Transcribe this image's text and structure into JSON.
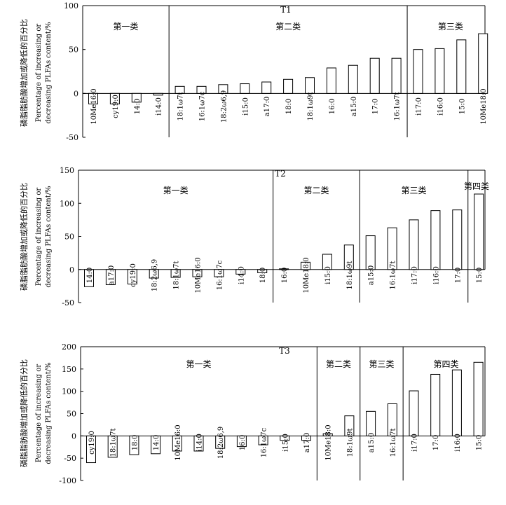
{
  "chart_data": [
    {
      "type": "bar",
      "title": "T1",
      "ylabel_cn": "磷脂脂肪酸增加或降低的百分比",
      "ylabel_en_line1": "Percentage of increasing or",
      "ylabel_en_line2": "decreasing PLFAs content/%",
      "ylim": [
        -50,
        100
      ],
      "yticks": [
        100,
        50,
        0,
        -50
      ],
      "categories": [
        "10Me16:0",
        "cy19:0",
        "14:0",
        "i14:0",
        "18:1ω7t",
        "16:1ω7c",
        "18:2ω6,9",
        "i15:0",
        "a17:0",
        "18:0",
        "18:1ω9t",
        "16:0",
        "a15:0",
        "17:0",
        "16:1ω7t",
        "i17:0",
        "i16:0",
        "15:0",
        "10Me18:0"
      ],
      "values": [
        -12,
        -12,
        -10,
        -2,
        8,
        8,
        10,
        11,
        13,
        16,
        18,
        29,
        32,
        40,
        40,
        50,
        51,
        61,
        68
      ],
      "groups": [
        {
          "label": "第一类",
          "start": 0,
          "end": 3
        },
        {
          "label": "第二类",
          "start": 4,
          "end": 14
        },
        {
          "label": "第三类",
          "start": 15,
          "end": 18
        }
      ]
    },
    {
      "type": "bar",
      "title": "T2",
      "ylabel_cn": "磷脂脂肪酸增加或降低的百分比",
      "ylabel_en_line1": "Percentage of increasing or",
      "ylabel_en_line2": "decreasing PLFAs content/%",
      "ylim": [
        -50,
        150
      ],
      "yticks": [
        150,
        100,
        50,
        0,
        -50
      ],
      "categories": [
        "14:0",
        "a17:0",
        "cy19:0",
        "18:2ω6,9",
        "18:1ω7t",
        "10Me16:0",
        "16:1ω7c",
        "i14:0",
        "18:0",
        "16:0",
        "10Me18:0",
        "i15:0",
        "18:1ω9t",
        "a15:0",
        "16:1ω7t",
        "i17:0",
        "i16:0",
        "17:0",
        "15:0"
      ],
      "values": [
        -26,
        -23,
        -22,
        -13,
        -12,
        -11,
        -11,
        -7,
        -5,
        1,
        11,
        23,
        37,
        51,
        63,
        75,
        89,
        90,
        114
      ],
      "groups": [
        {
          "label": "第一类",
          "start": 0,
          "end": 8
        },
        {
          "label": "第二类",
          "start": 9,
          "end": 12
        },
        {
          "label": "第三类",
          "start": 13,
          "end": 17
        },
        {
          "label": "第四类",
          "start": 18,
          "end": 18
        }
      ]
    },
    {
      "type": "bar",
      "title": "T3",
      "ylabel_cn": "磷脂脂肪酸增加或降低的百分比",
      "ylabel_en_line1": "Percentage of increasing or",
      "ylabel_en_line2": "decreasing PLFAs content/%",
      "ylim": [
        -100,
        200
      ],
      "yticks": [
        200,
        150,
        100,
        50,
        0,
        -50,
        -100
      ],
      "categories": [
        "cy19:0",
        "18:1ω7t",
        "18:0",
        "14:0",
        "10Me16:0",
        "i14:0",
        "18:2ω6,9",
        "16:0",
        "16:1ω7c",
        "i15:0",
        "a17:0",
        "10Me18:0",
        "18:1ω9t",
        "a15:0",
        "16:1ω7t",
        "i17:0",
        "17:0",
        "i16:0",
        "15:0"
      ],
      "values": [
        -60,
        -48,
        -42,
        -40,
        -34,
        -34,
        -28,
        -24,
        -20,
        -10,
        -10,
        5,
        45,
        55,
        72,
        101,
        138,
        148,
        165
      ],
      "groups": [
        {
          "label": "第一类",
          "start": 0,
          "end": 10
        },
        {
          "label": "第二类",
          "start": 11,
          "end": 12
        },
        {
          "label": "第三类",
          "start": 13,
          "end": 14
        },
        {
          "label": "第四类",
          "start": 15,
          "end": 18
        }
      ]
    }
  ]
}
